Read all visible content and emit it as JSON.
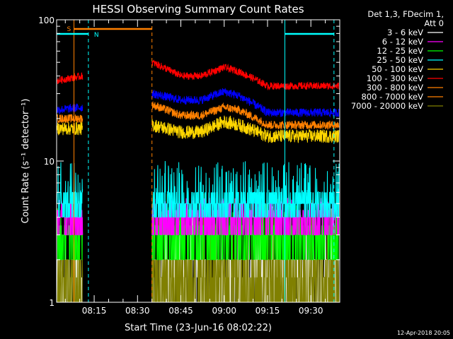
{
  "chart_data": {
    "type": "line",
    "title": "HESSI Observing Summary Count Rates",
    "xlabel": "Start Time (23-Jun-16 08:02:22)",
    "ylabel": "Count Rate (s⁻¹ detector⁻¹)",
    "ylog": true,
    "ylim": [
      1,
      100
    ],
    "xlim": [
      "08:02",
      "09:40"
    ],
    "x_ticks": [
      "08:15",
      "08:30",
      "08:45",
      "09:00",
      "09:15",
      "09:30"
    ],
    "y_ticks": [
      "1",
      "10",
      "100"
    ],
    "legend_header": [
      "Det 1,3, FDecim 1,",
      "Att 0"
    ],
    "legend_placement": "right",
    "footer": "12-Apr-2018 20:05",
    "gap": {
      "start": "08:11",
      "end": "08:35"
    },
    "series": [
      {
        "name": "3 - 6 keV",
        "color": "#ffffff",
        "level": 1.5,
        "noise": 0.35
      },
      {
        "name": "6 - 12 keV",
        "color": "#ff00ff",
        "level": 4.0,
        "noise": 0.25
      },
      {
        "name": "12 - 25 keV",
        "color": "#00ff00",
        "level": 3.0,
        "noise": 0.3
      },
      {
        "name": "25 - 50 keV",
        "color": "#00ffff",
        "level": 4.8,
        "noise": 0.3
      },
      {
        "name": "50 - 100 keV",
        "color": "#ffd700",
        "level": 17,
        "noise": 0.06
      },
      {
        "name": "100 - 300 keV",
        "color": "#ff0000",
        "level": 36,
        "noise": 0.04
      },
      {
        "name": "300 - 800 keV",
        "color": "#ff8000",
        "level": 19,
        "noise": 0.05
      },
      {
        "name": "800 - 7000 keV",
        "color": "#ff8000",
        "level": 20,
        "noise": 0.04
      },
      {
        "name": "7000 - 20000 keV",
        "color": "#808000",
        "level": 1.5,
        "noise": 0.35
      }
    ],
    "red_profile": [
      [
        "08:02",
        37
      ],
      [
        "08:11",
        40
      ],
      [
        "08:35",
        50
      ],
      [
        "08:45",
        40
      ],
      [
        "08:52",
        40
      ],
      [
        "09:00",
        46
      ],
      [
        "09:05",
        43
      ],
      [
        "09:15",
        34
      ],
      [
        "09:38",
        34
      ]
    ],
    "blue_profile": [
      [
        "08:02",
        23
      ],
      [
        "08:11",
        24
      ],
      [
        "08:35",
        30
      ],
      [
        "08:45",
        27
      ],
      [
        "08:52",
        27
      ],
      [
        "09:00",
        31
      ],
      [
        "09:05",
        29
      ],
      [
        "09:15",
        22
      ],
      [
        "09:38",
        22
      ]
    ],
    "orange_profile": [
      [
        "08:02",
        20
      ],
      [
        "08:11",
        20
      ],
      [
        "08:35",
        25
      ],
      [
        "08:45",
        21
      ],
      [
        "08:52",
        21
      ],
      [
        "09:00",
        24
      ],
      [
        "09:05",
        23
      ],
      [
        "09:15",
        18
      ],
      [
        "09:38",
        18
      ]
    ],
    "yellow_profile": [
      [
        "08:02",
        17
      ],
      [
        "08:11",
        17
      ],
      [
        "08:35",
        18
      ],
      [
        "08:45",
        16
      ],
      [
        "08:52",
        16
      ],
      [
        "09:00",
        19
      ],
      [
        "09:05",
        18
      ],
      [
        "09:15",
        15
      ],
      [
        "09:38",
        15
      ]
    ],
    "saa_flags": [
      {
        "label": "S",
        "color": "#ff8000",
        "start": "08:08",
        "end": "08:35"
      }
    ],
    "night_flags": [
      {
        "label": "N",
        "color": "#00ffff",
        "start": "08:02",
        "end": "08:13"
      },
      {
        "label": "",
        "color": "#00ffff",
        "start": "09:21",
        "end": "09:38"
      }
    ],
    "markers": [
      {
        "time": "08:08",
        "color": "#ff8000",
        "style": "solid"
      },
      {
        "time": "08:13",
        "color": "#00ffff",
        "style": "dashed"
      },
      {
        "time": "08:35",
        "color": "#ff8000",
        "style": "dashed"
      },
      {
        "time": "09:21",
        "color": "#00ffff",
        "style": "solid"
      },
      {
        "time": "09:38",
        "color": "#00ffff",
        "style": "dashed"
      }
    ]
  }
}
